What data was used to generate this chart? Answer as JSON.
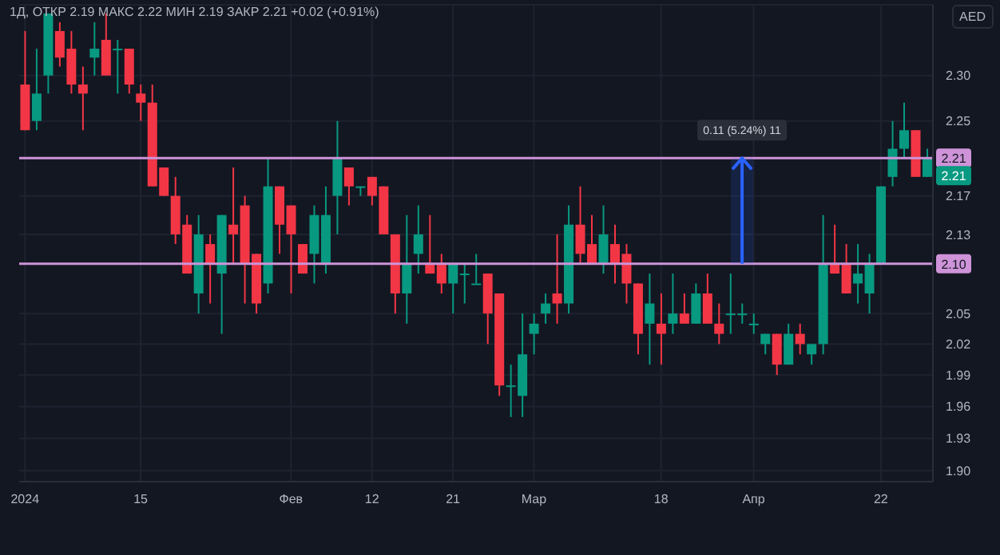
{
  "chart_data": {
    "type": "candlestick",
    "title": "1Д, ОТКР 2.19 МАКС 2.22 МИН 2.19 ЗАКР 2.21 +0.02 (+0.91%)",
    "ylabel": "AED",
    "categories": [
      "2024",
      null,
      null,
      null,
      null,
      null,
      null,
      null,
      null,
      null,
      "15",
      null,
      null,
      null,
      null,
      null,
      null,
      null,
      null,
      null,
      null,
      null,
      null,
      "Фев",
      null,
      null,
      null,
      null,
      null,
      null,
      "12",
      null,
      null,
      null,
      null,
      null,
      null,
      "21",
      null,
      null,
      null,
      null,
      null,
      null,
      "Мар",
      null,
      null,
      null,
      null,
      null,
      null,
      null,
      null,
      null,
      null,
      "18",
      null,
      null,
      null,
      null,
      null,
      null,
      null,
      "Апр",
      null,
      null,
      null,
      null,
      null,
      null,
      null,
      null,
      null,
      null,
      "22",
      null,
      null,
      null,
      null
    ],
    "ohlc": [
      [
        2.29,
        2.35,
        2.24,
        2.24
      ],
      [
        2.25,
        2.33,
        2.24,
        2.28
      ],
      [
        2.3,
        2.37,
        2.28,
        2.37
      ],
      [
        2.35,
        2.36,
        2.31,
        2.32
      ],
      [
        2.33,
        2.35,
        2.28,
        2.29
      ],
      [
        2.29,
        2.31,
        2.24,
        2.28
      ],
      [
        2.32,
        2.36,
        2.3,
        2.33
      ],
      [
        2.34,
        2.37,
        2.3,
        2.3
      ],
      [
        2.33,
        2.34,
        2.28,
        2.33
      ],
      [
        2.33,
        2.33,
        2.28,
        2.29
      ],
      [
        2.28,
        2.29,
        2.25,
        2.27
      ],
      [
        2.27,
        2.29,
        2.18,
        2.18
      ],
      [
        2.2,
        2.2,
        2.17,
        2.17
      ],
      [
        2.17,
        2.19,
        2.12,
        2.13
      ],
      [
        2.14,
        2.15,
        2.09,
        2.09
      ],
      [
        2.07,
        2.15,
        2.05,
        2.13
      ],
      [
        2.12,
        2.13,
        2.06,
        2.1
      ],
      [
        2.09,
        2.15,
        2.03,
        2.15
      ],
      [
        2.14,
        2.2,
        2.1,
        2.13
      ],
      [
        2.16,
        2.17,
        2.06,
        2.1
      ],
      [
        2.11,
        2.11,
        2.05,
        2.06
      ],
      [
        2.08,
        2.21,
        2.07,
        2.18
      ],
      [
        2.18,
        2.18,
        2.11,
        2.14
      ],
      [
        2.16,
        2.16,
        2.07,
        2.13
      ],
      [
        2.12,
        2.12,
        2.09,
        2.09
      ],
      [
        2.11,
        2.16,
        2.08,
        2.15
      ],
      [
        2.1,
        2.18,
        2.09,
        2.15
      ],
      [
        2.17,
        2.25,
        2.13,
        2.21
      ],
      [
        2.2,
        2.2,
        2.16,
        2.18
      ],
      [
        2.18,
        2.18,
        2.17,
        2.18
      ],
      [
        2.19,
        2.19,
        2.16,
        2.17
      ],
      [
        2.18,
        2.18,
        2.13,
        2.13
      ],
      [
        2.13,
        2.13,
        2.05,
        2.07
      ],
      [
        2.07,
        2.15,
        2.04,
        2.1
      ],
      [
        2.11,
        2.16,
        2.09,
        2.13
      ],
      [
        2.1,
        2.15,
        2.09,
        2.09
      ],
      [
        2.1,
        2.11,
        2.07,
        2.08
      ],
      [
        2.08,
        2.1,
        2.05,
        2.1
      ],
      [
        2.09,
        2.1,
        2.06,
        2.09
      ],
      [
        2.08,
        2.11,
        2.08,
        2.08
      ],
      [
        2.09,
        2.09,
        2.02,
        2.05
      ],
      [
        2.07,
        2.07,
        1.97,
        1.98
      ],
      [
        1.98,
        2.0,
        1.95,
        1.98
      ],
      [
        1.97,
        2.05,
        1.95,
        2.01
      ],
      [
        2.03,
        2.05,
        2.01,
        2.04
      ],
      [
        2.05,
        2.07,
        2.04,
        2.06
      ],
      [
        2.07,
        2.13,
        2.04,
        2.06
      ],
      [
        2.06,
        2.16,
        2.05,
        2.14
      ],
      [
        2.14,
        2.18,
        2.1,
        2.11
      ],
      [
        2.12,
        2.15,
        2.1,
        2.1
      ],
      [
        2.1,
        2.16,
        2.09,
        2.13
      ],
      [
        2.12,
        2.14,
        2.08,
        2.1
      ],
      [
        2.11,
        2.12,
        2.06,
        2.08
      ],
      [
        2.08,
        2.08,
        2.01,
        2.03
      ],
      [
        2.04,
        2.09,
        2.0,
        2.06
      ],
      [
        2.04,
        2.07,
        2.0,
        2.03
      ],
      [
        2.04,
        2.09,
        2.03,
        2.05
      ],
      [
        2.05,
        2.07,
        2.04,
        2.04
      ],
      [
        2.04,
        2.08,
        2.04,
        2.07
      ],
      [
        2.07,
        2.09,
        2.04,
        2.04
      ],
      [
        2.04,
        2.06,
        2.02,
        2.03
      ],
      [
        2.05,
        2.09,
        2.03,
        2.05
      ],
      [
        2.05,
        2.06,
        2.04,
        2.05
      ],
      [
        2.04,
        2.05,
        2.03,
        2.04
      ],
      [
        2.02,
        2.03,
        2.01,
        2.03
      ],
      [
        2.03,
        2.03,
        1.99,
        2.0
      ],
      [
        2.0,
        2.04,
        2.0,
        2.03
      ],
      [
        2.03,
        2.04,
        2.01,
        2.02
      ],
      [
        2.01,
        2.02,
        2.0,
        2.02
      ],
      [
        2.02,
        2.15,
        2.01,
        2.1
      ],
      [
        2.1,
        2.14,
        2.09,
        2.09
      ],
      [
        2.1,
        2.12,
        2.07,
        2.07
      ],
      [
        2.08,
        2.12,
        2.06,
        2.09
      ],
      [
        2.07,
        2.11,
        2.05,
        2.1
      ],
      [
        2.1,
        2.18,
        2.1,
        2.18
      ],
      [
        2.19,
        2.25,
        2.18,
        2.22
      ],
      [
        2.22,
        2.27,
        2.21,
        2.24
      ],
      [
        2.24,
        2.24,
        2.19,
        2.19
      ],
      [
        2.19,
        2.22,
        2.19,
        2.21
      ]
    ],
    "colors": [
      "#f23645",
      "#089981",
      "#089981",
      "#f23645",
      "#f23645",
      "#f23645",
      "#089981",
      "#f23645",
      "#089981",
      "#f23645",
      "#f23645",
      "#f23645",
      "#f23645",
      "#f23645",
      "#f23645",
      "#089981",
      "#f23645",
      "#089981",
      "#f23645",
      "#f23645",
      "#f23645",
      "#089981",
      "#f23645",
      "#f23645",
      "#f23645",
      "#089981",
      "#089981",
      "#089981",
      "#f23645",
      "#089981",
      "#f23645",
      "#f23645",
      "#f23645",
      "#089981",
      "#089981",
      "#f23645",
      "#f23645",
      "#089981",
      "#089981",
      "#089981",
      "#f23645",
      "#f23645",
      "#089981",
      "#089981",
      "#089981",
      "#089981",
      "#f23645",
      "#089981",
      "#f23645",
      "#f23645",
      "#089981",
      "#f23645",
      "#f23645",
      "#f23645",
      "#089981",
      "#f23645",
      "#089981",
      "#f23645",
      "#089981",
      "#f23645",
      "#f23645",
      "#089981",
      "#089981",
      "#089981",
      "#089981",
      "#f23645",
      "#089981",
      "#f23645",
      "#089981",
      "#089981",
      "#f23645",
      "#f23645",
      "#089981",
      "#089981",
      "#089981",
      "#089981",
      "#089981",
      "#f23645",
      "#089981"
    ],
    "log": true,
    "ylim": [
      1.89,
      2.38
    ],
    "yticks": [
      {
        "value": 1.9,
        "label": "1.90"
      },
      1.93,
      1.96,
      1.99,
      2.02,
      2.05,
      2.13,
      2.17,
      2.25,
      {
        "value": 2.3,
        "label": "2.30"
      }
    ],
    "grid": true,
    "ref_lines": [
      {
        "axis": "y",
        "value": 2.21,
        "label": "2.21",
        "color": "#ce93d8"
      },
      {
        "axis": "y",
        "value": 2.1,
        "label": "2.10",
        "color": "#ce93d8"
      }
    ],
    "annotations": [
      {
        "text": "0.11 (5.24%) 11"
      },
      {
        "text": "2.21",
        "y": 2.21
      }
    ]
  }
}
